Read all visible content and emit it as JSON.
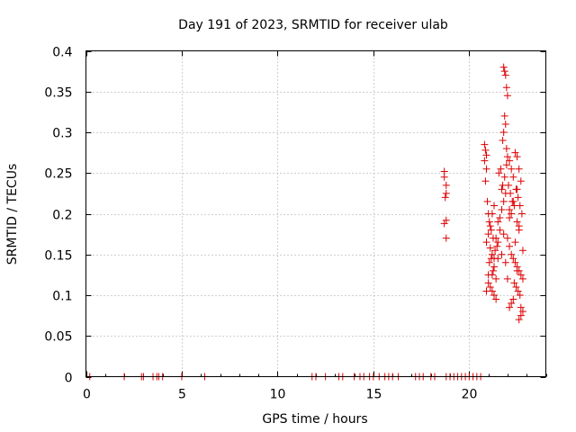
{
  "chart_data": {
    "type": "scatter",
    "title": "Day 191 of 2023, SRMTID for receiver ulab",
    "xlabel": "GPS time / hours",
    "ylabel": "SRMTID / TECUs",
    "xlim": [
      0,
      24
    ],
    "ylim": [
      0,
      0.4
    ],
    "grid": true,
    "marker": "+",
    "color": "#dd0000",
    "x_ticks": [
      0,
      5,
      10,
      15,
      20
    ],
    "x_tick_labels": [
      "0",
      "5",
      "10",
      "15",
      "20"
    ],
    "y_ticks": [
      0,
      0.05,
      0.1,
      0.15,
      0.2,
      0.25,
      0.3,
      0.35,
      0.4
    ],
    "y_tick_labels": [
      "0",
      "0.05",
      "0.1",
      "0.15",
      "0.2",
      "0.25",
      "0.3",
      "0.35",
      "0.4"
    ],
    "series": [
      {
        "name": "SRMTID",
        "x": [
          0.2,
          2.0,
          2.9,
          3.0,
          3.5,
          3.7,
          3.8,
          4.0,
          5.0,
          6.2,
          11.8,
          12.0,
          12.5,
          13.2,
          13.4,
          14.0,
          14.3,
          14.5,
          14.8,
          15.0,
          15.3,
          15.6,
          15.8,
          16.0,
          16.3,
          17.2,
          17.4,
          17.6,
          18.0,
          18.2,
          18.8,
          19.0,
          19.2,
          19.4,
          19.6,
          19.8,
          20.0,
          20.2,
          20.4,
          20.6,
          18.7,
          18.7,
          18.8,
          18.8,
          18.75,
          18.8,
          18.7,
          18.8,
          20.8,
          20.85,
          20.9,
          20.8,
          20.9,
          20.85,
          20.95,
          21.0,
          21.05,
          21.1,
          21.0,
          20.9,
          21.1,
          21.2,
          21.15,
          21.05,
          21.3,
          21.25,
          21.2,
          21.4,
          21.0,
          21.1,
          21.2,
          21.3,
          21.4,
          21.5,
          21.35,
          21.45,
          21.25,
          21.15,
          21.6,
          21.7,
          21.8,
          21.9,
          21.75,
          21.85,
          21.65,
          21.95,
          21.55,
          21.7,
          21.8,
          21.85,
          21.9,
          21.95,
          22.0,
          21.85,
          21.9,
          21.8,
          21.75,
          21.95,
          22.0,
          22.1,
          22.2,
          22.3,
          22.05,
          22.15,
          22.25,
          22.35,
          22.1,
          22.2,
          22.4,
          22.5,
          22.6,
          22.7,
          22.45,
          22.55,
          22.65,
          22.75,
          22.5,
          22.6,
          22.0,
          22.1,
          22.2,
          22.3,
          22.4,
          22.5,
          22.6,
          22.7,
          22.8,
          22.35,
          22.45,
          22.55,
          22.65,
          22.3,
          22.2,
          22.1,
          22.8,
          22.7,
          22.6,
          22.5,
          21.2,
          21.3,
          21.5,
          21.6,
          21.4,
          21.7,
          21.9,
          22.0,
          22.4,
          22.6,
          20.9,
          21.0,
          21.3,
          21.5,
          21.8,
          22.1,
          22.3,
          22.5,
          22.7,
          22.8
        ],
        "y": [
          0,
          0,
          0,
          0,
          0,
          0,
          0,
          0,
          0,
          0,
          0,
          0,
          0,
          0,
          0,
          0,
          0,
          0,
          0,
          0,
          0,
          0,
          0,
          0,
          0,
          0,
          0,
          0,
          0,
          0,
          0,
          0,
          0,
          0,
          0,
          0,
          0,
          0,
          0,
          0,
          0.252,
          0.245,
          0.235,
          0.225,
          0.22,
          0.192,
          0.188,
          0.17,
          0.285,
          0.278,
          0.272,
          0.265,
          0.255,
          0.24,
          0.215,
          0.2,
          0.19,
          0.185,
          0.175,
          0.165,
          0.158,
          0.15,
          0.145,
          0.14,
          0.135,
          0.13,
          0.125,
          0.12,
          0.115,
          0.11,
          0.105,
          0.1,
          0.095,
          0.145,
          0.155,
          0.16,
          0.17,
          0.18,
          0.195,
          0.205,
          0.215,
          0.225,
          0.235,
          0.245,
          0.255,
          0.26,
          0.25,
          0.23,
          0.38,
          0.375,
          0.37,
          0.355,
          0.345,
          0.32,
          0.31,
          0.3,
          0.29,
          0.28,
          0.27,
          0.265,
          0.255,
          0.245,
          0.235,
          0.225,
          0.215,
          0.21,
          0.205,
          0.2,
          0.275,
          0.27,
          0.255,
          0.24,
          0.23,
          0.22,
          0.21,
          0.2,
          0.19,
          0.18,
          0.17,
          0.16,
          0.15,
          0.145,
          0.14,
          0.135,
          0.13,
          0.125,
          0.12,
          0.115,
          0.11,
          0.105,
          0.1,
          0.095,
          0.09,
          0.085,
          0.08,
          0.075,
          0.07,
          0.13,
          0.2,
          0.21,
          0.19,
          0.18,
          0.17,
          0.15,
          0.14,
          0.12,
          0.165,
          0.185,
          0.105,
          0.125,
          0.145,
          0.165,
          0.175,
          0.195,
          0.215,
          0.23,
          0.085,
          0.155
        ]
      }
    ]
  }
}
